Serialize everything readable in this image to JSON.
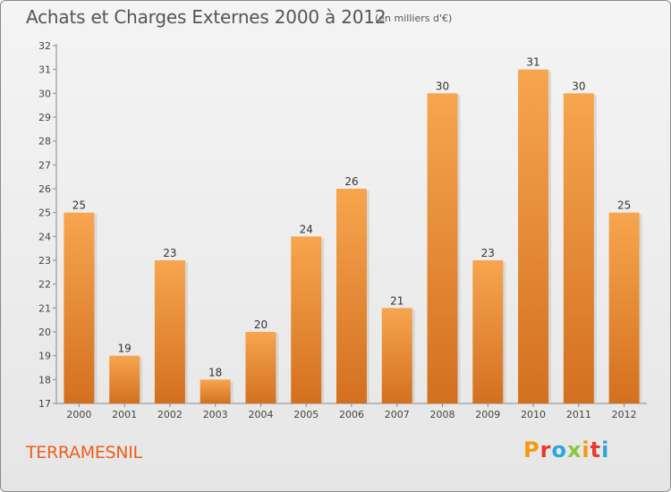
{
  "chart_data": {
    "type": "bar",
    "title": "Achats et Charges Externes 2000 à 2012",
    "subtitle": "(en milliers d'€)",
    "categories": [
      "2000",
      "2001",
      "2002",
      "2003",
      "2004",
      "2005",
      "2006",
      "2007",
      "2008",
      "2009",
      "2010",
      "2011",
      "2012"
    ],
    "values": [
      25,
      19,
      23,
      18,
      20,
      24,
      26,
      21,
      30,
      23,
      31,
      30,
      25
    ],
    "ylim": [
      17,
      32
    ],
    "yticks": [
      "17",
      "18",
      "19",
      "20",
      "21",
      "22",
      "23",
      "24",
      "25",
      "26",
      "27",
      "28",
      "29",
      "30",
      "31",
      "32"
    ],
    "grid": false,
    "bar_color_top": "#f7a54e",
    "bar_color_bottom": "#d3701f"
  },
  "footer": {
    "place": "TERRAMESNIL",
    "brand": "Proxiti",
    "brand_colors": [
      "#f29b12",
      "#e53b2c",
      "#2ca6de",
      "#8cc63f",
      "#f29b12",
      "#e53b2c",
      "#2ca6de"
    ]
  }
}
